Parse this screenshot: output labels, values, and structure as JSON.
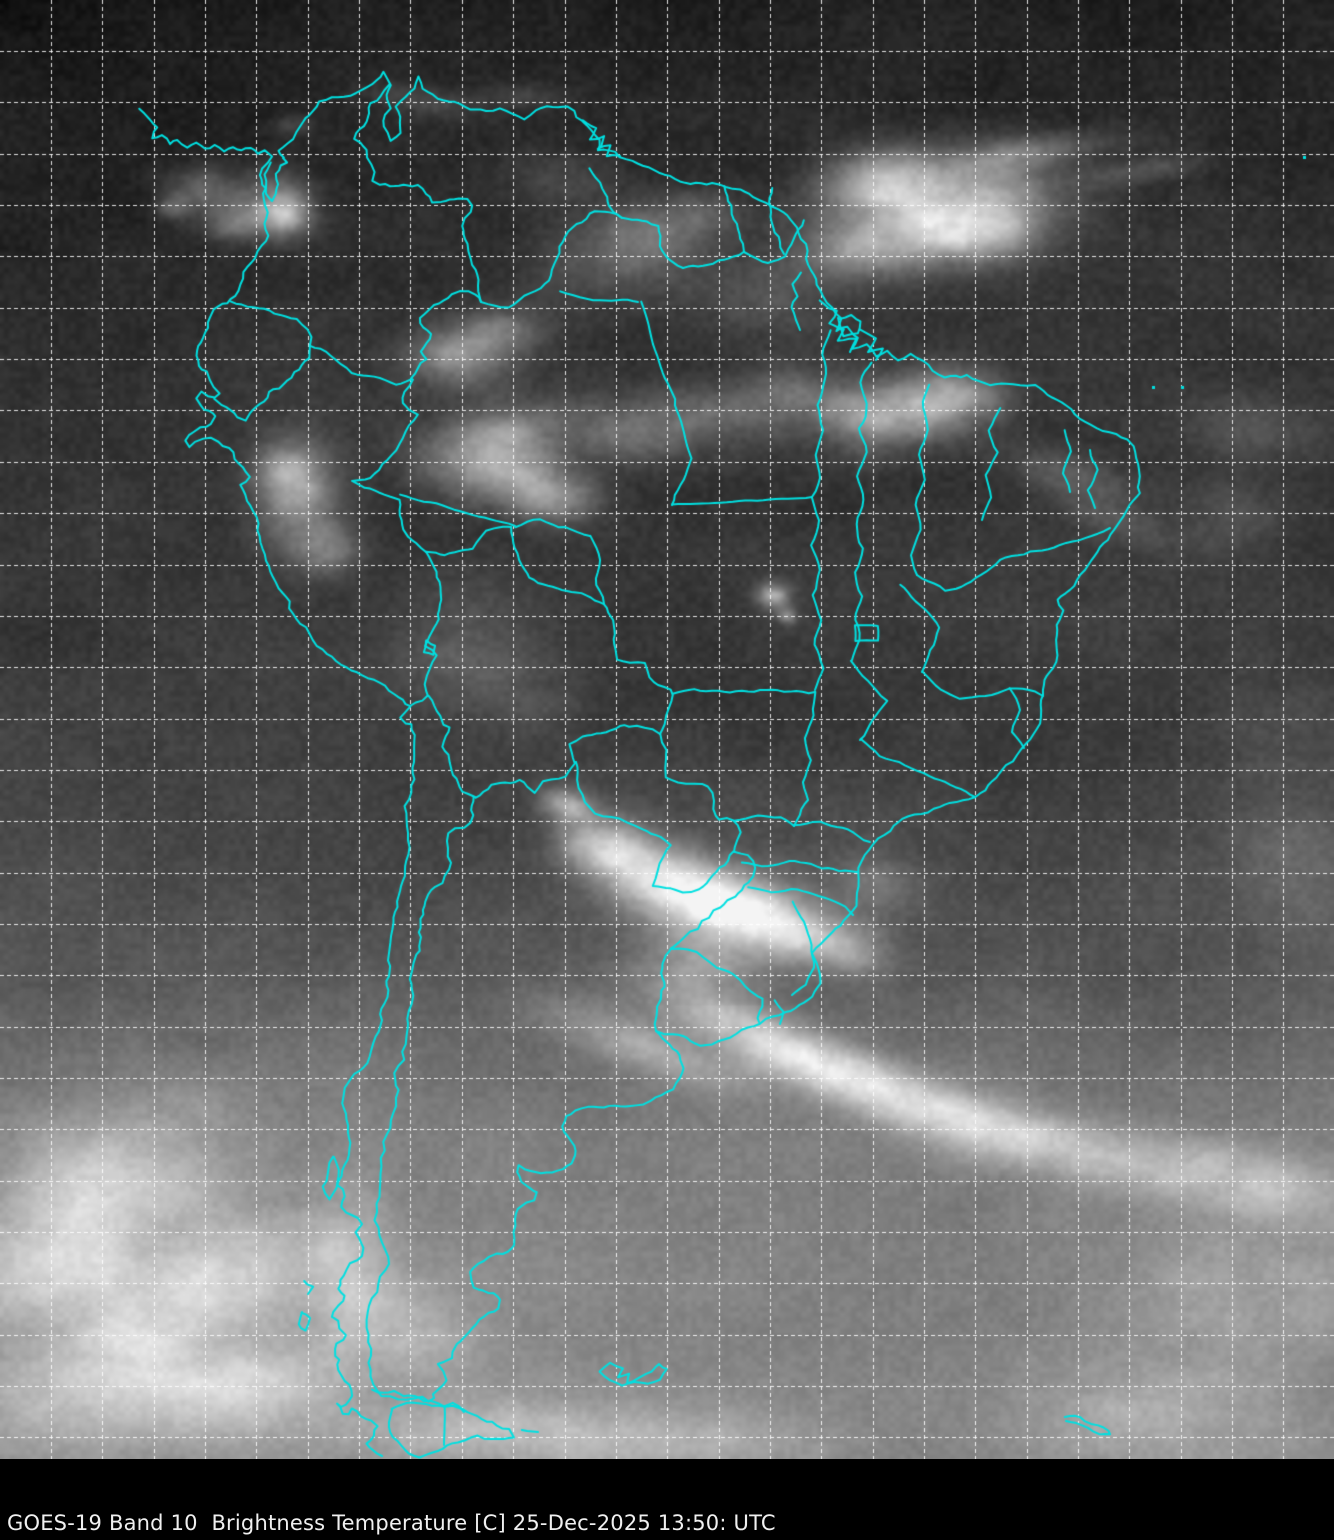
{
  "caption": {
    "text": "GOES-19 Band 10  Brightness Temperature [C] 25-Dec-2025 13:50: UTC",
    "satellite": "GOES-19",
    "band": "Band 10",
    "product": "Brightness Temperature",
    "units": "[C]",
    "date": "25-Dec-2025",
    "time": "13:50:",
    "timezone": "UTC"
  },
  "map": {
    "colors": {
      "border": "#00dfe0",
      "grid": "#ffffff",
      "caption_bg": "#000000",
      "caption_text": "#f0f0f0"
    }
  }
}
